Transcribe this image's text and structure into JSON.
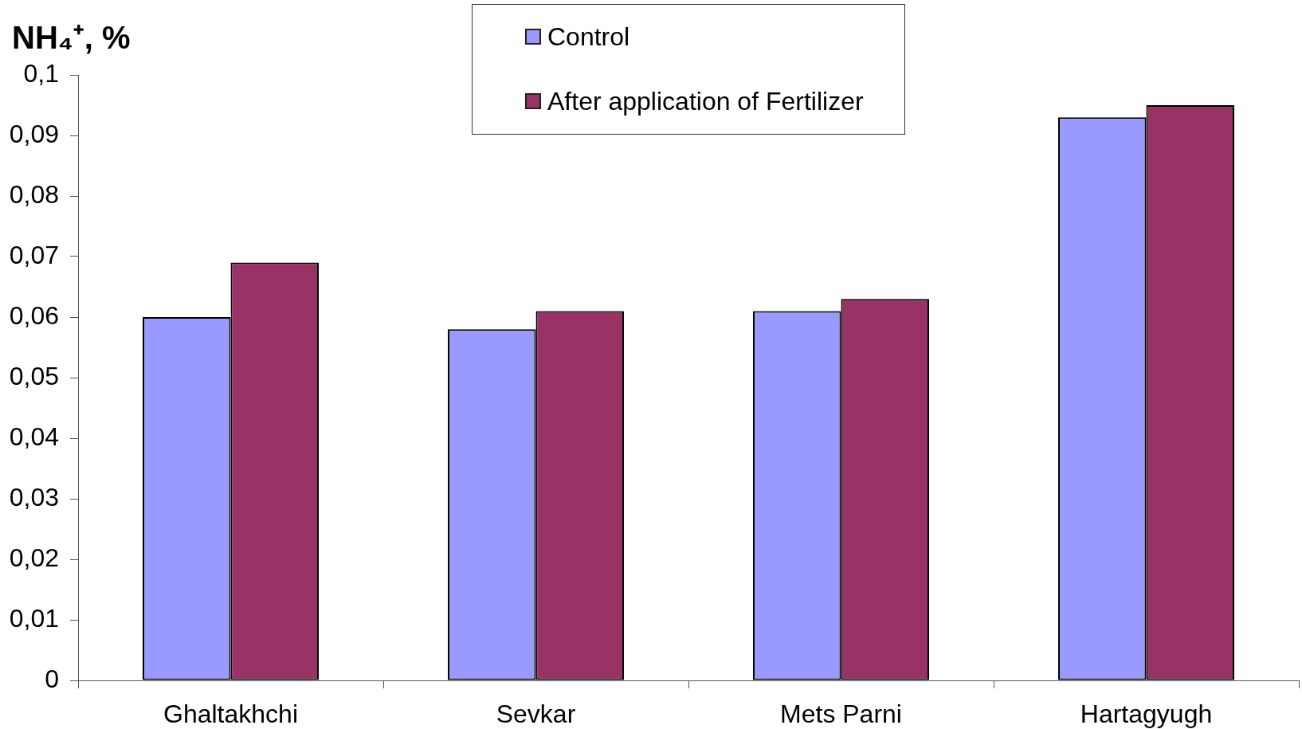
{
  "chart_data": {
    "type": "bar",
    "ylabel": "NH₄⁺, %",
    "categories": [
      "Ghaltakhchi",
      "Sevkar",
      "Mets Parni",
      "Hartagyugh"
    ],
    "series": [
      {
        "name": "Control",
        "color": "#9999ff",
        "values": [
          0.06,
          0.058,
          0.061,
          0.093
        ]
      },
      {
        "name": "After application of Fertilizer",
        "color": "#993366",
        "values": [
          0.069,
          0.061,
          0.063,
          0.095
        ]
      }
    ],
    "ylim": [
      0,
      0.1
    ],
    "yticks": [
      0,
      {
        "value": 0.01,
        "label": "0,01"
      },
      {
        "value": 0.02,
        "label": "0,02"
      },
      {
        "value": 0.03,
        "label": "0,03"
      },
      {
        "value": 0.04,
        "label": "0,04"
      },
      {
        "value": 0.05,
        "label": "0,05"
      },
      {
        "value": 0.06,
        "label": "0,06"
      },
      {
        "value": 0.07,
        "label": "0,07"
      },
      {
        "value": 0.08,
        "label": "0,08"
      },
      {
        "value": 0.09,
        "label": "0,09"
      },
      {
        "value": 0.1,
        "label": "0,1"
      }
    ],
    "legend": "top"
  }
}
